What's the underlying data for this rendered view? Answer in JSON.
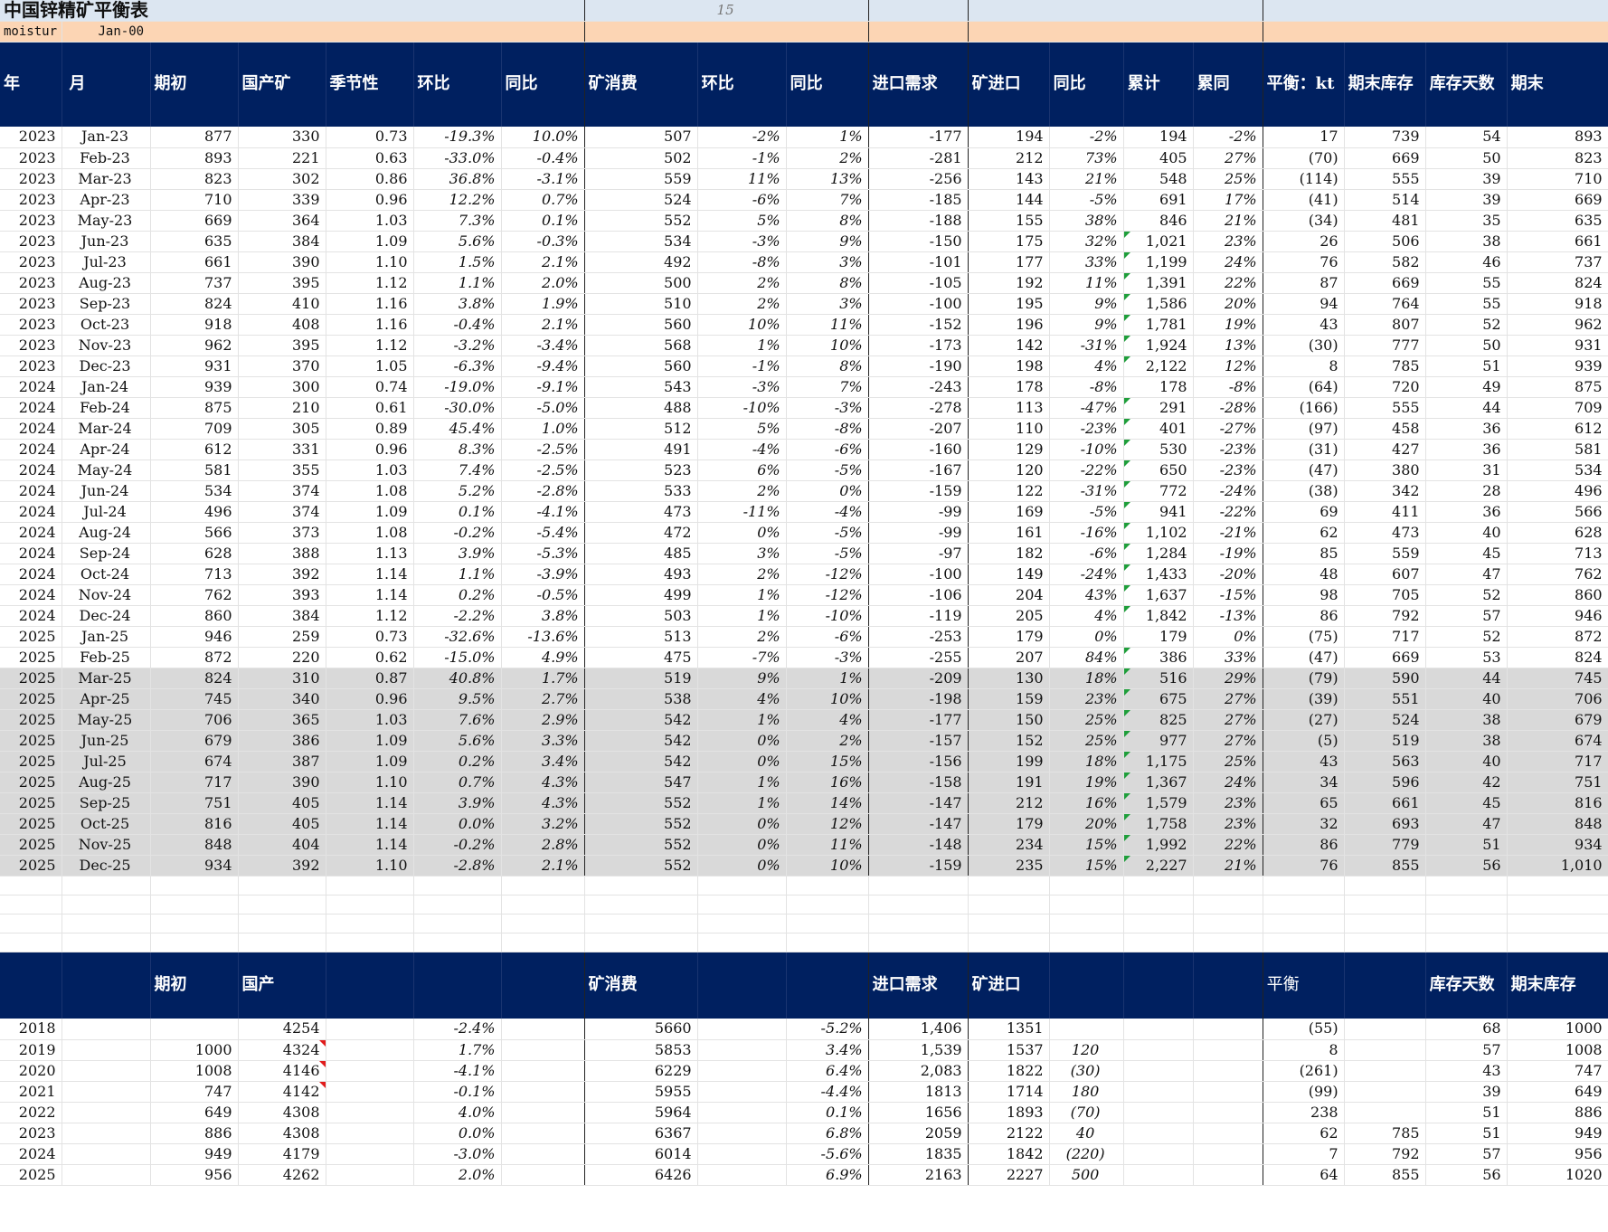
{
  "title": "中国锌精矿平衡表",
  "page_number": "15",
  "sub": {
    "label": "moistur",
    "date": "Jan-00"
  },
  "headers": [
    "年",
    "月",
    "期初",
    "国产矿",
    "季节性",
    "环比",
    "同比",
    "矿消费",
    "环比",
    "同比",
    "进口需求",
    "矿进口",
    "同比",
    "累计",
    "累同",
    "平衡：kt",
    "期末库存",
    "库存天数",
    "期末"
  ],
  "rows": [
    [
      "2023",
      "Jan-23",
      "877",
      "330",
      "0.73",
      "-19.3%",
      "10.0%",
      "507",
      "-2%",
      "1%",
      "-177",
      "194",
      "-2%",
      "194",
      "-2%",
      "17",
      "739",
      "54",
      "893"
    ],
    [
      "2023",
      "Feb-23",
      "893",
      "221",
      "0.63",
      "-33.0%",
      "-0.4%",
      "502",
      "-1%",
      "2%",
      "-281",
      "212",
      "73%",
      "405",
      "27%",
      "(70)",
      "669",
      "50",
      "823"
    ],
    [
      "2023",
      "Mar-23",
      "823",
      "302",
      "0.86",
      "36.8%",
      "-3.1%",
      "559",
      "11%",
      "13%",
      "-256",
      "143",
      "21%",
      "548",
      "25%",
      "(114)",
      "555",
      "39",
      "710"
    ],
    [
      "2023",
      "Apr-23",
      "710",
      "339",
      "0.96",
      "12.2%",
      "0.7%",
      "524",
      "-6%",
      "7%",
      "-185",
      "144",
      "-5%",
      "691",
      "17%",
      "(41)",
      "514",
      "39",
      "669"
    ],
    [
      "2023",
      "May-23",
      "669",
      "364",
      "1.03",
      "7.3%",
      "0.1%",
      "552",
      "5%",
      "8%",
      "-188",
      "155",
      "38%",
      "846",
      "21%",
      "(34)",
      "481",
      "35",
      "635"
    ],
    [
      "2023",
      "Jun-23",
      "635",
      "384",
      "1.09",
      "5.6%",
      "-0.3%",
      "534",
      "-3%",
      "9%",
      "-150",
      "175",
      "32%",
      "1,021",
      "23%",
      "26",
      "506",
      "38",
      "661"
    ],
    [
      "2023",
      "Jul-23",
      "661",
      "390",
      "1.10",
      "1.5%",
      "2.1%",
      "492",
      "-8%",
      "3%",
      "-101",
      "177",
      "33%",
      "1,199",
      "24%",
      "76",
      "582",
      "46",
      "737"
    ],
    [
      "2023",
      "Aug-23",
      "737",
      "395",
      "1.12",
      "1.1%",
      "2.0%",
      "500",
      "2%",
      "8%",
      "-105",
      "192",
      "11%",
      "1,391",
      "22%",
      "87",
      "669",
      "55",
      "824"
    ],
    [
      "2023",
      "Sep-23",
      "824",
      "410",
      "1.16",
      "3.8%",
      "1.9%",
      "510",
      "2%",
      "3%",
      "-100",
      "195",
      "9%",
      "1,586",
      "20%",
      "94",
      "764",
      "55",
      "918"
    ],
    [
      "2023",
      "Oct-23",
      "918",
      "408",
      "1.16",
      "-0.4%",
      "2.1%",
      "560",
      "10%",
      "11%",
      "-152",
      "196",
      "9%",
      "1,781",
      "19%",
      "43",
      "807",
      "52",
      "962"
    ],
    [
      "2023",
      "Nov-23",
      "962",
      "395",
      "1.12",
      "-3.2%",
      "-3.4%",
      "568",
      "1%",
      "10%",
      "-173",
      "142",
      "-31%",
      "1,924",
      "13%",
      "(30)",
      "777",
      "50",
      "931"
    ],
    [
      "2023",
      "Dec-23",
      "931",
      "370",
      "1.05",
      "-6.3%",
      "-9.4%",
      "560",
      "-1%",
      "8%",
      "-190",
      "198",
      "4%",
      "2,122",
      "12%",
      "8",
      "785",
      "51",
      "939"
    ],
    [
      "2024",
      "Jan-24",
      "939",
      "300",
      "0.74",
      "-19.0%",
      "-9.1%",
      "543",
      "-3%",
      "7%",
      "-243",
      "178",
      "-8%",
      "178",
      "-8%",
      "(64)",
      "720",
      "49",
      "875"
    ],
    [
      "2024",
      "Feb-24",
      "875",
      "210",
      "0.61",
      "-30.0%",
      "-5.0%",
      "488",
      "-10%",
      "-3%",
      "-278",
      "113",
      "-47%",
      "291",
      "-28%",
      "(166)",
      "555",
      "44",
      "709"
    ],
    [
      "2024",
      "Mar-24",
      "709",
      "305",
      "0.89",
      "45.4%",
      "1.0%",
      "512",
      "5%",
      "-8%",
      "-207",
      "110",
      "-23%",
      "401",
      "-27%",
      "(97)",
      "458",
      "36",
      "612"
    ],
    [
      "2024",
      "Apr-24",
      "612",
      "331",
      "0.96",
      "8.3%",
      "-2.5%",
      "491",
      "-4%",
      "-6%",
      "-160",
      "129",
      "-10%",
      "530",
      "-23%",
      "(31)",
      "427",
      "36",
      "581"
    ],
    [
      "2024",
      "May-24",
      "581",
      "355",
      "1.03",
      "7.4%",
      "-2.5%",
      "523",
      "6%",
      "-5%",
      "-167",
      "120",
      "-22%",
      "650",
      "-23%",
      "(47)",
      "380",
      "31",
      "534"
    ],
    [
      "2024",
      "Jun-24",
      "534",
      "374",
      "1.08",
      "5.2%",
      "-2.8%",
      "533",
      "2%",
      "0%",
      "-159",
      "122",
      "-31%",
      "772",
      "-24%",
      "(38)",
      "342",
      "28",
      "496"
    ],
    [
      "2024",
      "Jul-24",
      "496",
      "374",
      "1.09",
      "0.1%",
      "-4.1%",
      "473",
      "-11%",
      "-4%",
      "-99",
      "169",
      "-5%",
      "941",
      "-22%",
      "69",
      "411",
      "36",
      "566"
    ],
    [
      "2024",
      "Aug-24",
      "566",
      "373",
      "1.08",
      "-0.2%",
      "-5.4%",
      "472",
      "0%",
      "-5%",
      "-99",
      "161",
      "-16%",
      "1,102",
      "-21%",
      "62",
      "473",
      "40",
      "628"
    ],
    [
      "2024",
      "Sep-24",
      "628",
      "388",
      "1.13",
      "3.9%",
      "-5.3%",
      "485",
      "3%",
      "-5%",
      "-97",
      "182",
      "-6%",
      "1,284",
      "-19%",
      "85",
      "559",
      "45",
      "713"
    ],
    [
      "2024",
      "Oct-24",
      "713",
      "392",
      "1.14",
      "1.1%",
      "-3.9%",
      "493",
      "2%",
      "-12%",
      "-100",
      "149",
      "-24%",
      "1,433",
      "-20%",
      "48",
      "607",
      "47",
      "762"
    ],
    [
      "2024",
      "Nov-24",
      "762",
      "393",
      "1.14",
      "0.2%",
      "-0.5%",
      "499",
      "1%",
      "-12%",
      "-106",
      "204",
      "43%",
      "1,637",
      "-15%",
      "98",
      "705",
      "52",
      "860"
    ],
    [
      "2024",
      "Dec-24",
      "860",
      "384",
      "1.12",
      "-2.2%",
      "3.8%",
      "503",
      "1%",
      "-10%",
      "-119",
      "205",
      "4%",
      "1,842",
      "-13%",
      "86",
      "792",
      "57",
      "946"
    ],
    [
      "2025",
      "Jan-25",
      "946",
      "259",
      "0.73",
      "-32.6%",
      "-13.6%",
      "513",
      "2%",
      "-6%",
      "-253",
      "179",
      "0%",
      "179",
      "0%",
      "(75)",
      "717",
      "52",
      "872"
    ],
    [
      "2025",
      "Feb-25",
      "872",
      "220",
      "0.62",
      "-15.0%",
      "4.9%",
      "475",
      "-7%",
      "-3%",
      "-255",
      "207",
      "84%",
      "386",
      "33%",
      "(47)",
      "669",
      "53",
      "824"
    ],
    [
      "2025",
      "Mar-25",
      "824",
      "310",
      "0.87",
      "40.8%",
      "1.7%",
      "519",
      "9%",
      "1%",
      "-209",
      "130",
      "18%",
      "516",
      "29%",
      "(79)",
      "590",
      "44",
      "745"
    ],
    [
      "2025",
      "Apr-25",
      "745",
      "340",
      "0.96",
      "9.5%",
      "2.7%",
      "538",
      "4%",
      "10%",
      "-198",
      "159",
      "23%",
      "675",
      "27%",
      "(39)",
      "551",
      "40",
      "706"
    ],
    [
      "2025",
      "May-25",
      "706",
      "365",
      "1.03",
      "7.6%",
      "2.9%",
      "542",
      "1%",
      "4%",
      "-177",
      "150",
      "25%",
      "825",
      "27%",
      "(27)",
      "524",
      "38",
      "679"
    ],
    [
      "2025",
      "Jun-25",
      "679",
      "386",
      "1.09",
      "5.6%",
      "3.3%",
      "542",
      "0%",
      "2%",
      "-157",
      "152",
      "25%",
      "977",
      "27%",
      "(5)",
      "519",
      "38",
      "674"
    ],
    [
      "2025",
      "Jul-25",
      "674",
      "387",
      "1.09",
      "0.2%",
      "3.4%",
      "542",
      "0%",
      "15%",
      "-156",
      "199",
      "18%",
      "1,175",
      "25%",
      "43",
      "563",
      "40",
      "717"
    ],
    [
      "2025",
      "Aug-25",
      "717",
      "390",
      "1.10",
      "0.7%",
      "4.3%",
      "547",
      "1%",
      "16%",
      "-158",
      "191",
      "19%",
      "1,367",
      "24%",
      "34",
      "596",
      "42",
      "751"
    ],
    [
      "2025",
      "Sep-25",
      "751",
      "405",
      "1.14",
      "3.9%",
      "4.3%",
      "552",
      "1%",
      "14%",
      "-147",
      "212",
      "16%",
      "1,579",
      "23%",
      "65",
      "661",
      "45",
      "816"
    ],
    [
      "2025",
      "Oct-25",
      "816",
      "405",
      "1.14",
      "0.0%",
      "3.2%",
      "552",
      "0%",
      "12%",
      "-147",
      "179",
      "20%",
      "1,758",
      "23%",
      "32",
      "693",
      "47",
      "848"
    ],
    [
      "2025",
      "Nov-25",
      "848",
      "404",
      "1.14",
      "-0.2%",
      "2.8%",
      "552",
      "0%",
      "11%",
      "-148",
      "234",
      "15%",
      "1,992",
      "22%",
      "86",
      "779",
      "51",
      "934"
    ],
    [
      "2025",
      "Dec-25",
      "934",
      "392",
      "1.10",
      "-2.8%",
      "2.1%",
      "552",
      "0%",
      "10%",
      "-159",
      "235",
      "15%",
      "2,227",
      "21%",
      "76",
      "855",
      "56",
      "1,010"
    ]
  ],
  "headers2": {
    "c2": "期初",
    "c3": "国产",
    "c7": "矿消费",
    "c10": "进口需求",
    "c11": "矿进口",
    "c15": "平衡",
    "c17": "库存天数",
    "c18": "期末库存"
  },
  "rows2": [
    [
      "2018",
      "",
      "4254",
      "-2.4%",
      "5660",
      "-5.2%",
      "1,406",
      "1351",
      "",
      "(55)",
      "",
      "68",
      "1000"
    ],
    [
      "2019",
      "1000",
      "4324",
      "1.7%",
      "5853",
      "3.4%",
      "1,539",
      "1537",
      "120",
      "8",
      "",
      "57",
      "1008"
    ],
    [
      "2020",
      "1008",
      "4146",
      "-4.1%",
      "6229",
      "6.4%",
      "2,083",
      "1822",
      "(30)",
      "(261)",
      "",
      "43",
      "747"
    ],
    [
      "2021",
      "747",
      "4142",
      "-0.1%",
      "5955",
      "-4.4%",
      "1813",
      "1714",
      "180",
      "(99)",
      "",
      "39",
      "649"
    ],
    [
      "2022",
      "649",
      "4308",
      "4.0%",
      "5964",
      "0.1%",
      "1656",
      "1893",
      "(70)",
      "238",
      "",
      "51",
      "886"
    ],
    [
      "2023",
      "886",
      "4308",
      "0.0%",
      "6367",
      "6.8%",
      "2059",
      "2122",
      "40",
      "62",
      "785",
      "51",
      "949"
    ],
    [
      "2024",
      "949",
      "4179",
      "-3.0%",
      "6014",
      "-5.6%",
      "1835",
      "1842",
      "(220)",
      "7",
      "792",
      "57",
      "956"
    ],
    [
      "2025",
      "956",
      "4262",
      "2.0%",
      "6426",
      "6.9%",
      "2163",
      "2227",
      "500",
      "64",
      "855",
      "56",
      "1020"
    ]
  ]
}
